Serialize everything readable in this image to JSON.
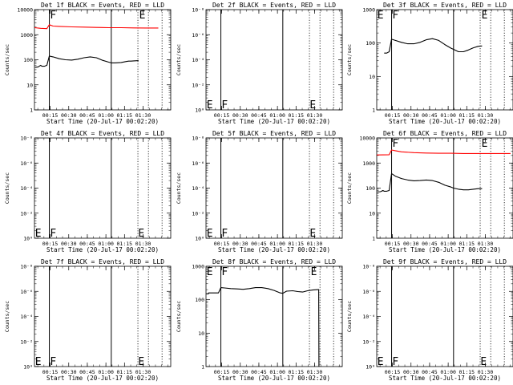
{
  "chart_data": [
    {
      "type": "line",
      "title": "Det 1f BLACK = Events, RED = LLD",
      "ylabel": "Counts/sec",
      "xlabel": "Start Time (20-Jul-17 00:02:20)",
      "yscale": "log",
      "ylim": [
        1,
        10000
      ],
      "ytick_labels": [
        "1",
        "10",
        "100",
        "1000",
        "10000"
      ],
      "x_ticks": [
        "00:15",
        "00:30",
        "00:45",
        "01:00",
        "01:15",
        "01:30"
      ],
      "xlim_minutes": [
        0,
        110
      ],
      "vlines_solid": [
        12.0,
        62.0
      ],
      "vlines_dotted": [
        83.5,
        92.0,
        103.0
      ],
      "markers": [
        {
          "text": "F",
          "x": 12.5,
          "y": 10000
        },
        {
          "text": "E",
          "x": 84.5,
          "y": 10000
        }
      ],
      "series": [
        {
          "color": "#ff0000",
          "points": [
            [
              0,
              1900
            ],
            [
              5,
              1800
            ],
            [
              10,
              1750
            ],
            [
              12,
              2500
            ],
            [
              15,
              2200
            ],
            [
              20,
              2150
            ],
            [
              30,
              2050
            ],
            [
              40,
              2000
            ],
            [
              50,
              1950
            ],
            [
              60,
              1900
            ],
            [
              70,
              1900
            ],
            [
              80,
              1870
            ],
            [
              90,
              1850
            ],
            [
              100,
              1850
            ]
          ]
        },
        {
          "color": "#000000",
          "points": [
            [
              0.5,
              50
            ],
            [
              3,
              52
            ],
            [
              5,
              60
            ],
            [
              6,
              55
            ],
            [
              8,
              55
            ],
            [
              10,
              60
            ],
            [
              12,
              140
            ],
            [
              15,
              130
            ],
            [
              20,
              110
            ],
            [
              25,
              100
            ],
            [
              30,
              97
            ],
            [
              35,
              105
            ],
            [
              40,
              120
            ],
            [
              45,
              130
            ],
            [
              50,
              120
            ],
            [
              55,
              95
            ],
            [
              60,
              80
            ],
            [
              62,
              75
            ],
            [
              65,
              75
            ],
            [
              70,
              78
            ],
            [
              74,
              85
            ],
            [
              76,
              88
            ],
            [
              78,
              88
            ],
            [
              80,
              90
            ],
            [
              84,
              92
            ]
          ]
        }
      ]
    },
    {
      "type": "line",
      "title": "Det 2f BLACK = Events, RED = LLD",
      "ylabel": "Counts/sec",
      "xlabel": "Start Time (20-Jul-17 00:02:20)",
      "yscale": "log",
      "ylim": [
        1,
        10000
      ],
      "ytick_labels": [
        "10⁰",
        "10⁻²",
        "10⁻⁴",
        "10⁻⁶",
        "10⁻⁸"
      ],
      "x_ticks": [
        "00:15",
        "00:30",
        "00:45",
        "01:00",
        "01:15",
        "01:30"
      ],
      "xlim_minutes": [
        0,
        110
      ],
      "vlines_solid": [
        12.0,
        62.0
      ],
      "vlines_dotted": [
        83.5,
        92.0,
        103.0
      ],
      "markers": [
        {
          "text": "E",
          "x": 0.5,
          "y": 1.35
        },
        {
          "text": "F",
          "x": 12.5,
          "y": 1.35
        },
        {
          "text": "E",
          "x": 83.7,
          "y": 1.35
        }
      ],
      "series": []
    },
    {
      "type": "line",
      "title": "Det 3f BLACK = Events, RED = LLD",
      "ylabel": "Counts/sec",
      "xlabel": "Start Time (20-Jul-17 00:02:20)",
      "yscale": "log",
      "ylim": [
        1,
        1000
      ],
      "ytick_labels": [
        "1",
        "10",
        "100",
        "1000"
      ],
      "x_ticks": [
        "00:15",
        "00:30",
        "00:45",
        "01:00",
        "01:15",
        "01:30"
      ],
      "xlim_minutes": [
        0,
        110
      ],
      "vlines_solid": [
        12.0,
        62.0
      ],
      "vlines_dotted": [
        83.5,
        92.0,
        103.0
      ],
      "markers": [
        {
          "text": "E",
          "x": 0.5,
          "y": 1000
        },
        {
          "text": "F",
          "x": 12.5,
          "y": 1000
        },
        {
          "text": "E",
          "x": 84.5,
          "y": 1000
        }
      ],
      "series": [
        {
          "color": "#000000",
          "points": [
            [
              6,
              50
            ],
            [
              8,
              50
            ],
            [
              10,
              55
            ],
            [
              12,
              130
            ],
            [
              15,
              120
            ],
            [
              20,
              105
            ],
            [
              25,
              95
            ],
            [
              30,
              95
            ],
            [
              35,
              105
            ],
            [
              40,
              125
            ],
            [
              45,
              135
            ],
            [
              50,
              120
            ],
            [
              55,
              90
            ],
            [
              60,
              70
            ],
            [
              62,
              65
            ],
            [
              66,
              55
            ],
            [
              70,
              55
            ],
            [
              74,
              62
            ],
            [
              78,
              72
            ],
            [
              82,
              80
            ],
            [
              85,
              82
            ]
          ]
        }
      ]
    },
    {
      "type": "line",
      "title": "Det 4f BLACK = Events, RED = LLD",
      "ylabel": "Counts/sec",
      "xlabel": "Start Time (20-Jul-17 00:02:20)",
      "yscale": "log",
      "ylim": [
        1,
        10000
      ],
      "ytick_labels": [
        "10⁰",
        "10⁻²",
        "10⁻⁴",
        "10⁻⁶",
        "10⁻⁸"
      ],
      "x_ticks": [
        "00:15",
        "00:30",
        "00:45",
        "01:00",
        "01:15",
        "01:30"
      ],
      "xlim_minutes": [
        0,
        110
      ],
      "vlines_solid": [
        12.0,
        62.0
      ],
      "vlines_dotted": [
        83.5,
        92.0,
        103.0
      ],
      "markers": [
        {
          "text": "E",
          "x": 0.5,
          "y": 1.35
        },
        {
          "text": "F",
          "x": 12.5,
          "y": 1.35
        },
        {
          "text": "E",
          "x": 83.7,
          "y": 1.35
        }
      ],
      "series": []
    },
    {
      "type": "line",
      "title": "Det 5f BLACK = Events, RED = LLD",
      "ylabel": "Counts/sec",
      "xlabel": "Start Time (20-Jul-17 00:02:20)",
      "yscale": "log",
      "ylim": [
        1,
        10000
      ],
      "ytick_labels": [
        "10⁰",
        "10⁻²",
        "10⁻⁴",
        "10⁻⁶",
        "10⁻⁸"
      ],
      "x_ticks": [
        "00:15",
        "00:30",
        "00:45",
        "01:00",
        "01:15",
        "01:30"
      ],
      "xlim_minutes": [
        0,
        110
      ],
      "vlines_solid": [
        12.0,
        62.0
      ],
      "vlines_dotted": [
        83.5,
        92.0,
        103.0
      ],
      "markers": [
        {
          "text": "E",
          "x": 0.5,
          "y": 1.35
        },
        {
          "text": "F",
          "x": 12.5,
          "y": 1.35
        },
        {
          "text": "E",
          "x": 83.7,
          "y": 1.35
        }
      ],
      "series": []
    },
    {
      "type": "line",
      "title": "Det 6f BLACK = Events, RED = LLD",
      "ylabel": "Counts/sec",
      "xlabel": "Start Time (20-Jul-17 00:02:20)",
      "yscale": "log",
      "ylim": [
        1,
        10000
      ],
      "ytick_labels": [
        "1",
        "10",
        "100",
        "1000",
        "10000"
      ],
      "x_ticks": [
        "00:15",
        "00:30",
        "00:45",
        "01:00",
        "01:15",
        "01:30"
      ],
      "xlim_minutes": [
        0,
        110
      ],
      "vlines_solid": [
        12.0,
        62.0
      ],
      "vlines_dotted": [
        83.5,
        92.0,
        103.0
      ],
      "markers": [
        {
          "text": "F",
          "x": 12.5,
          "y": 10000
        },
        {
          "text": "E",
          "x": 84.5,
          "y": 10000
        }
      ],
      "series": [
        {
          "color": "#ff0000",
          "points": [
            [
              0,
              2100
            ],
            [
              10,
              2150
            ],
            [
              12,
              3300
            ],
            [
              15,
              3100
            ],
            [
              20,
              2800
            ],
            [
              30,
              2600
            ],
            [
              40,
              2500
            ],
            [
              50,
              2450
            ],
            [
              60,
              2450
            ],
            [
              70,
              2400
            ],
            [
              80,
              2400
            ],
            [
              90,
              2400
            ],
            [
              100,
              2400
            ],
            [
              108,
              2400
            ]
          ]
        },
        {
          "color": "#000000",
          "points": [
            [
              0.5,
              70
            ],
            [
              3,
              72
            ],
            [
              5,
              80
            ],
            [
              6,
              75
            ],
            [
              8,
              75
            ],
            [
              10,
              80
            ],
            [
              12,
              380
            ],
            [
              15,
              300
            ],
            [
              20,
              240
            ],
            [
              25,
              210
            ],
            [
              30,
              195
            ],
            [
              35,
              200
            ],
            [
              40,
              210
            ],
            [
              45,
              200
            ],
            [
              50,
              170
            ],
            [
              55,
              130
            ],
            [
              60,
              110
            ],
            [
              62,
              100
            ],
            [
              66,
              90
            ],
            [
              70,
              85
            ],
            [
              74,
              85
            ],
            [
              78,
              90
            ],
            [
              82,
              95
            ],
            [
              85,
              95
            ]
          ]
        }
      ]
    },
    {
      "type": "line",
      "title": "Det 7f BLACK = Events, RED = LLD",
      "ylabel": "Counts/sec",
      "xlabel": "Start Time (20-Jul-17 00:02:20)",
      "yscale": "log",
      "ylim": [
        1,
        10000
      ],
      "ytick_labels": [
        "10⁰",
        "10⁻²",
        "10⁻⁴",
        "10⁻⁶",
        "10⁻⁸"
      ],
      "x_ticks": [
        "00:15",
        "00:30",
        "00:45",
        "01:00",
        "01:15",
        "01:30"
      ],
      "xlim_minutes": [
        0,
        110
      ],
      "vlines_solid": [
        12.0,
        62.0
      ],
      "vlines_dotted": [
        83.5,
        92.0,
        103.0
      ],
      "markers": [
        {
          "text": "E",
          "x": 0.5,
          "y": 1.35
        },
        {
          "text": "F",
          "x": 12.5,
          "y": 1.35
        },
        {
          "text": "E",
          "x": 83.7,
          "y": 1.35
        }
      ],
      "series": []
    },
    {
      "type": "line",
      "title": "Det 8f BLACK = Events, RED = LLD",
      "ylabel": "Counts/sec",
      "xlabel": "Start Time (20-Jul-17 00:02:20)",
      "yscale": "log",
      "ylim": [
        1,
        1000
      ],
      "ytick_labels": [
        "1",
        "10",
        "100",
        "1000"
      ],
      "x_ticks": [
        "00:15",
        "00:30",
        "00:45",
        "01:00",
        "01:15",
        "01:30"
      ],
      "xlim_minutes": [
        0,
        110
      ],
      "vlines_solid": [
        12.0,
        62.0
      ],
      "vlines_dotted": [
        83.5,
        92.0,
        103.0
      ],
      "markers": [
        {
          "text": "E",
          "x": 0.5,
          "y": 1000
        },
        {
          "text": "F",
          "x": 12.5,
          "y": 1000
        },
        {
          "text": "E",
          "x": 84.5,
          "y": 1000
        }
      ],
      "series": [
        {
          "color": "#000000",
          "points": [
            [
              0.2,
              150
            ],
            [
              2,
              150
            ],
            [
              2.1,
              160
            ],
            [
              8,
              160
            ],
            [
              10,
              160
            ],
            [
              12,
              230
            ],
            [
              15,
              225
            ],
            [
              20,
              215
            ],
            [
              25,
              210
            ],
            [
              30,
              205
            ],
            [
              35,
              215
            ],
            [
              40,
              230
            ],
            [
              45,
              230
            ],
            [
              50,
              215
            ],
            [
              55,
              190
            ],
            [
              60,
              160
            ],
            [
              62,
              155
            ],
            [
              65,
              180
            ],
            [
              70,
              185
            ],
            [
              74,
              175
            ],
            [
              78,
              170
            ],
            [
              82,
              185
            ],
            [
              86,
              195
            ],
            [
              90,
              200
            ],
            [
              91,
              200
            ],
            [
              91.2,
              1
            ]
          ]
        }
      ]
    },
    {
      "type": "line",
      "title": "Det 9f BLACK = Events, RED = LLD",
      "ylabel": "Counts/sec",
      "xlabel": "Start Time (20-Jul-17 00:02:20)",
      "yscale": "log",
      "ylim": [
        1,
        10000
      ],
      "ytick_labels": [
        "10⁰",
        "10⁻²",
        "10⁻⁴",
        "10⁻⁶",
        "10⁻⁸"
      ],
      "x_ticks": [
        "00:15",
        "00:30",
        "00:45",
        "01:00",
        "01:15",
        "01:30"
      ],
      "xlim_minutes": [
        0,
        110
      ],
      "vlines_solid": [
        12.0,
        62.0
      ],
      "vlines_dotted": [
        83.5,
        92.0,
        103.0
      ],
      "markers": [
        {
          "text": "E",
          "x": 0.5,
          "y": 1.35
        },
        {
          "text": "F",
          "x": 12.5,
          "y": 1.35
        },
        {
          "text": "E",
          "x": 83.7,
          "y": 1.35
        }
      ],
      "series": []
    }
  ]
}
